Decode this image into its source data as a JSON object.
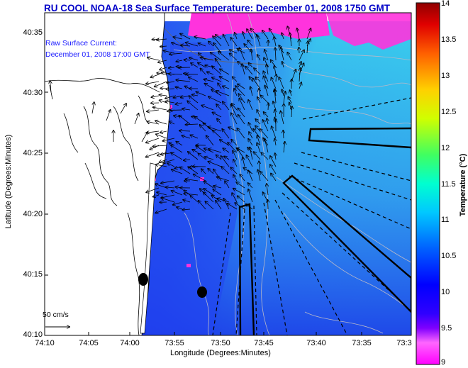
{
  "title": "RU COOL  NOAA-18  Sea Surface Temperature:  December 01, 2008 1750 GMT",
  "inset": {
    "line1": "Raw Surface Current:",
    "line2": "December 01, 2008 17:00 GMT"
  },
  "scale": {
    "label": "50 cm/s"
  },
  "axes": {
    "x_title": "Longitude (Degrees:Minutes)",
    "y_title": "Latitude (Degrees:Minutes)",
    "x_ticks": [
      "74:10",
      "74:05",
      "74:00",
      "73:55",
      "73:50",
      "73:45",
      "73:40",
      "73:35",
      "73:3"
    ],
    "y_ticks": [
      "40:35",
      "40:30",
      "40:25",
      "40:20",
      "40:15",
      "40:10"
    ]
  },
  "colorbar": {
    "title": "Temperature (°C)",
    "ticks": [
      "14",
      "13.5",
      "13",
      "12.5",
      "12",
      "11.5",
      "11",
      "10.5",
      "10",
      "9.5",
      "9"
    ],
    "range": [
      9,
      14
    ]
  },
  "colors": {
    "title": "#0000c8",
    "sea_cold": "#1f3df0",
    "sea_warm": "#3ad8ef",
    "cloud_mask": "#ff33dd"
  }
}
